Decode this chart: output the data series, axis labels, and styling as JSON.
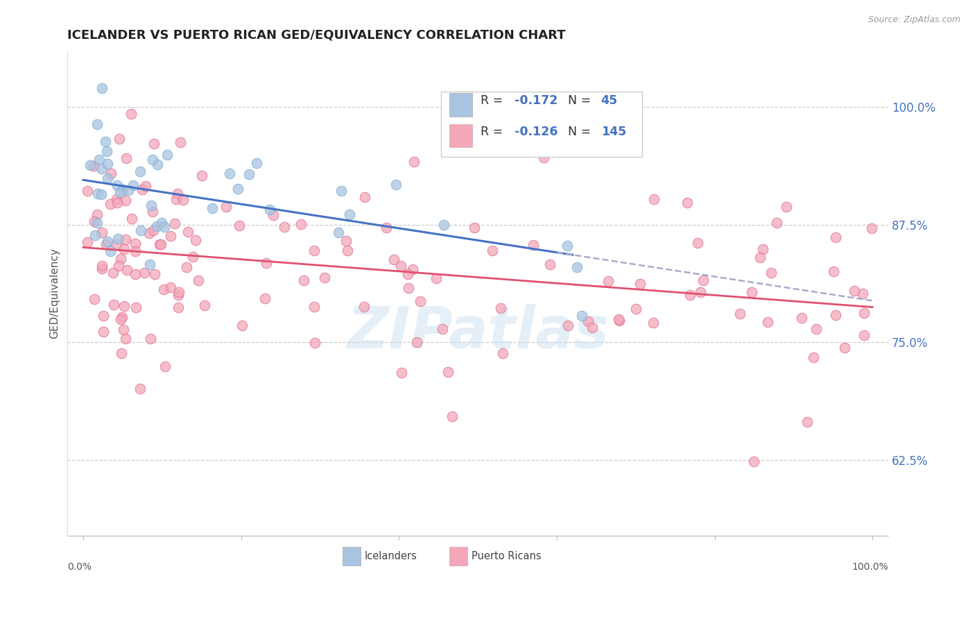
{
  "title": "ICELANDER VS PUERTO RICAN GED/EQUIVALENCY CORRELATION CHART",
  "source": "Source: ZipAtlas.com",
  "ylabel": "GED/Equivalency",
  "watermark": "ZIPatlas",
  "icelander_color": "#a8c4e0",
  "icelander_edge": "#7aafd4",
  "puerto_rican_color": "#f4a7b9",
  "puerto_rican_edge": "#e07090",
  "blue_line_color": "#4472c4",
  "pink_line_color": "#e05070",
  "dashed_line_color": "#aaaacc",
  "right_axis_color": "#4472c4",
  "legend_text_color": "#333333",
  "legend_val_color": "#4472c4",
  "ytick_labels": [
    "62.5%",
    "75.0%",
    "87.5%",
    "100.0%"
  ],
  "ytick_values": [
    0.625,
    0.75,
    0.875,
    1.0
  ],
  "xlim": [
    -0.02,
    1.02
  ],
  "ylim": [
    0.545,
    1.06
  ],
  "legend_r1": "-0.172",
  "legend_n1": "45",
  "legend_r2": "-0.126",
  "legend_n2": "145",
  "ice_seed": 42,
  "pr_seed": 99,
  "n_ice": 45,
  "n_pr": 145,
  "watermark_text": "ZIPatlas",
  "source_text": "Source: ZipAtlas.com"
}
